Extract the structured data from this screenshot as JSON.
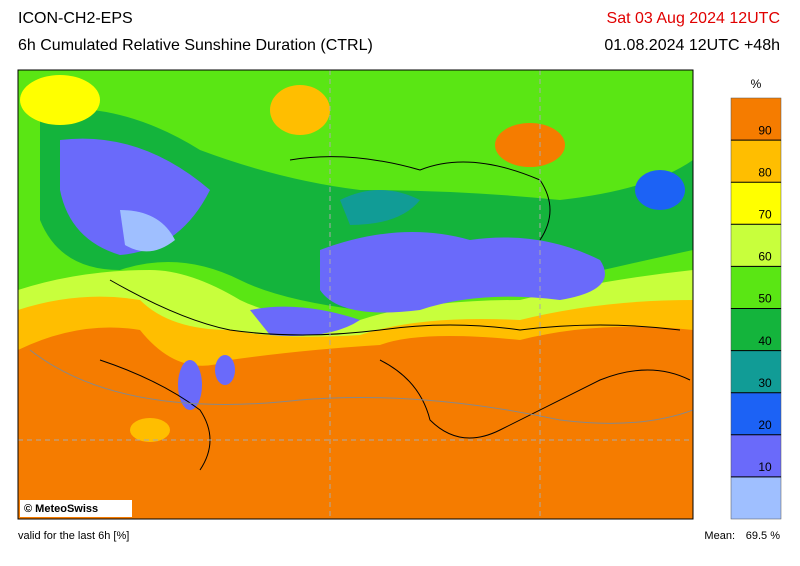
{
  "header": {
    "model": "ICON-CH2-EPS",
    "product": "6h Cumulated Relative Sunshine Duration (CTRL)",
    "valid_date": "Sat 03 Aug 2024 12UTC",
    "run": "01.08.2024 12UTC +48h"
  },
  "legend": {
    "unit": "%",
    "ticks": [
      10,
      20,
      30,
      40,
      50,
      60,
      70,
      80,
      90
    ],
    "colors": [
      "#9fbfff",
      "#6a6afa",
      "#1c62f5",
      "#119c96",
      "#14b43c",
      "#5ae614",
      "#c8ff3c",
      "#ffff00",
      "#ffbe00",
      "#f57c00"
    ]
  },
  "map": {
    "copyright": "© MeteoSwiss"
  },
  "footer": {
    "note": "valid for the last 6h [%]",
    "mean_label": "Mean:",
    "mean_value": "69.5 %"
  }
}
